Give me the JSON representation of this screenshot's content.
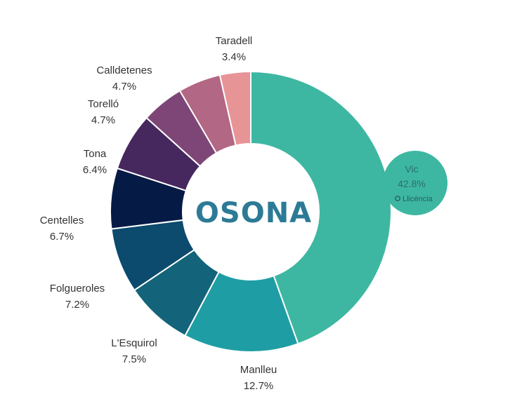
{
  "chart_data": {
    "type": "pie",
    "title": "OSONA",
    "slices": [
      {
        "label": "Vic",
        "value": 42.8,
        "value_text": "42.8%",
        "color": "#3db7a2"
      },
      {
        "label": "Manlleu",
        "value": 12.7,
        "value_text": "12.7%",
        "color": "#1e9ea4"
      },
      {
        "label": "L'Esquirol",
        "value": 7.5,
        "value_text": "7.5%",
        "color": "#13637a"
      },
      {
        "label": "Folgueroles",
        "value": 7.2,
        "value_text": "7.2%",
        "color": "#0c4a6e"
      },
      {
        "label": "Centelles",
        "value": 6.7,
        "value_text": "6.7%",
        "color": "#051a45"
      },
      {
        "label": "Tona",
        "value": 6.4,
        "value_text": "6.4%",
        "color": "#46275e"
      },
      {
        "label": "Torelló",
        "value": 4.7,
        "value_text": "4.7%",
        "color": "#7d4677"
      },
      {
        "label": "Calldetenes",
        "value": 4.7,
        "value_text": "4.7%",
        "color": "#b26784"
      },
      {
        "label": "Taradell",
        "value": 3.4,
        "value_text": "3.4%",
        "color": "#e79497"
      }
    ],
    "bubble": {
      "label": "Vic",
      "value_text": "42.8%",
      "license_text": "Llicència"
    },
    "colors": {
      "title": "#2c7a96",
      "label_text": "#333333"
    }
  }
}
